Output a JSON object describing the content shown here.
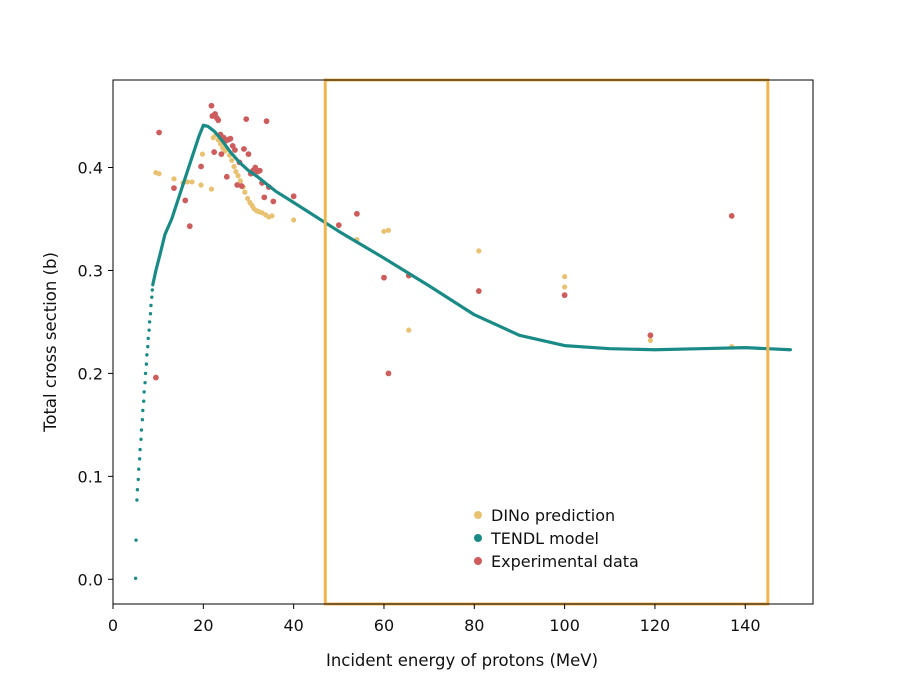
{
  "chart_data": {
    "type": "scatter",
    "title": "",
    "xlabel": "Incident energy of protons (MeV)",
    "ylabel": "Total cross section (b)",
    "xlim": [
      0,
      155
    ],
    "ylim": [
      -0.024,
      0.485
    ],
    "xticks": [
      0,
      20,
      40,
      60,
      80,
      100,
      120,
      140
    ],
    "yticks": [
      0.0,
      0.1,
      0.2,
      0.3,
      0.4
    ],
    "ytick_labels": [
      "0.0",
      "0.1",
      "0.2",
      "0.3",
      "0.4"
    ],
    "legend_position": "bottom-center",
    "colors": {
      "dino": "#e8c270",
      "tendl": "#1a8a86",
      "exp": "#cd5c5c",
      "highlight": "#f0b450",
      "axes": "#000000"
    },
    "highlight_box": {
      "x_range": [
        47,
        145
      ],
      "y_range": [
        -0.024,
        0.485
      ]
    },
    "series": [
      {
        "name": "DINo prediction",
        "kind": "scatter",
        "points": [
          [
            9.5,
            0.395
          ],
          [
            10.2,
            0.394
          ],
          [
            13.5,
            0.389
          ],
          [
            15.5,
            0.385
          ],
          [
            16.5,
            0.386
          ],
          [
            17.5,
            0.386
          ],
          [
            19.5,
            0.383
          ],
          [
            19.8,
            0.413
          ],
          [
            21.8,
            0.379
          ],
          [
            22.2,
            0.429
          ],
          [
            22.8,
            0.432
          ],
          [
            23.3,
            0.427
          ],
          [
            23.8,
            0.423
          ],
          [
            24.3,
            0.419
          ],
          [
            24.8,
            0.416
          ],
          [
            25.2,
            0.418
          ],
          [
            25.8,
            0.412
          ],
          [
            26.3,
            0.407
          ],
          [
            26.8,
            0.401
          ],
          [
            27.2,
            0.396
          ],
          [
            27.7,
            0.392
          ],
          [
            28.2,
            0.387
          ],
          [
            28.8,
            0.381
          ],
          [
            29.2,
            0.376
          ],
          [
            29.8,
            0.37
          ],
          [
            30.3,
            0.366
          ],
          [
            30.8,
            0.363
          ],
          [
            31.2,
            0.36
          ],
          [
            31.8,
            0.358
          ],
          [
            32.3,
            0.357
          ],
          [
            33.0,
            0.356
          ],
          [
            33.8,
            0.354
          ],
          [
            34.5,
            0.352
          ],
          [
            35.2,
            0.353
          ],
          [
            40.0,
            0.349
          ],
          [
            54.0,
            0.33
          ],
          [
            60.0,
            0.338
          ],
          [
            61.0,
            0.339
          ],
          [
            65.5,
            0.242
          ],
          [
            81.0,
            0.319
          ],
          [
            100.0,
            0.294
          ],
          [
            100.0,
            0.284
          ],
          [
            119.0,
            0.232
          ],
          [
            137.0,
            0.226
          ]
        ]
      },
      {
        "name": "TENDL model",
        "kind": "line",
        "points": [
          [
            8.8,
            0.286
          ],
          [
            9.5,
            0.3
          ],
          [
            10.5,
            0.317
          ],
          [
            11.5,
            0.335
          ],
          [
            13.0,
            0.35
          ],
          [
            14.5,
            0.37
          ],
          [
            16.0,
            0.39
          ],
          [
            17.5,
            0.41
          ],
          [
            19.0,
            0.43
          ],
          [
            20.0,
            0.441
          ],
          [
            21.0,
            0.44
          ],
          [
            22.5,
            0.435
          ],
          [
            24.0,
            0.427
          ],
          [
            26.0,
            0.415
          ],
          [
            28.0,
            0.405
          ],
          [
            30.0,
            0.397
          ],
          [
            32.0,
            0.391
          ],
          [
            34.0,
            0.384
          ],
          [
            36.0,
            0.377
          ],
          [
            40.0,
            0.366
          ],
          [
            50.0,
            0.338
          ],
          [
            60.0,
            0.312
          ],
          [
            70.0,
            0.285
          ],
          [
            80.0,
            0.257
          ],
          [
            90.0,
            0.237
          ],
          [
            100.0,
            0.227
          ],
          [
            110.0,
            0.224
          ],
          [
            120.0,
            0.223
          ],
          [
            130.0,
            0.224
          ],
          [
            140.0,
            0.225
          ],
          [
            150.0,
            0.223
          ]
        ],
        "sparse_points": [
          [
            5.0,
            0.001
          ],
          [
            5.1,
            0.038
          ],
          [
            5.3,
            0.077
          ],
          [
            5.4,
            0.087
          ],
          [
            5.6,
            0.097
          ],
          [
            5.7,
            0.107
          ],
          [
            5.9,
            0.117
          ],
          [
            6.0,
            0.126
          ],
          [
            6.2,
            0.136
          ],
          [
            6.3,
            0.145
          ],
          [
            6.5,
            0.155
          ],
          [
            6.6,
            0.164
          ],
          [
            6.8,
            0.173
          ],
          [
            6.9,
            0.182
          ],
          [
            7.1,
            0.191
          ],
          [
            7.2,
            0.2
          ],
          [
            7.4,
            0.209
          ],
          [
            7.5,
            0.218
          ],
          [
            7.7,
            0.226
          ],
          [
            7.8,
            0.234
          ],
          [
            8.0,
            0.242
          ],
          [
            8.1,
            0.25
          ],
          [
            8.3,
            0.258
          ],
          [
            8.4,
            0.266
          ],
          [
            8.6,
            0.274
          ],
          [
            8.7,
            0.281
          ]
        ]
      },
      {
        "name": "Experimental data",
        "kind": "scatter",
        "points": [
          [
            9.5,
            0.196
          ],
          [
            10.2,
            0.434
          ],
          [
            13.5,
            0.38
          ],
          [
            16.0,
            0.368
          ],
          [
            17.0,
            0.343
          ],
          [
            19.5,
            0.401
          ],
          [
            21.8,
            0.46
          ],
          [
            22.0,
            0.45
          ],
          [
            22.4,
            0.415
          ],
          [
            22.6,
            0.452
          ],
          [
            23.0,
            0.448
          ],
          [
            23.3,
            0.446
          ],
          [
            23.8,
            0.432
          ],
          [
            24.0,
            0.413
          ],
          [
            24.5,
            0.429
          ],
          [
            25.0,
            0.426
          ],
          [
            25.2,
            0.391
          ],
          [
            25.5,
            0.427
          ],
          [
            26.0,
            0.428
          ],
          [
            26.5,
            0.421
          ],
          [
            27.0,
            0.417
          ],
          [
            27.5,
            0.383
          ],
          [
            28.0,
            0.405
          ],
          [
            28.5,
            0.382
          ],
          [
            29.0,
            0.418
          ],
          [
            29.5,
            0.447
          ],
          [
            30.0,
            0.413
          ],
          [
            30.5,
            0.394
          ],
          [
            31.0,
            0.397
          ],
          [
            31.5,
            0.4
          ],
          [
            32.0,
            0.396
          ],
          [
            32.5,
            0.397
          ],
          [
            33.0,
            0.385
          ],
          [
            33.5,
            0.371
          ],
          [
            34.0,
            0.445
          ],
          [
            34.5,
            0.381
          ],
          [
            35.5,
            0.367
          ],
          [
            40.0,
            0.372
          ],
          [
            50.0,
            0.344
          ],
          [
            54.0,
            0.355
          ],
          [
            60.0,
            0.293
          ],
          [
            61.0,
            0.2
          ],
          [
            65.5,
            0.295
          ],
          [
            81.0,
            0.28
          ],
          [
            100.0,
            0.276
          ],
          [
            119.0,
            0.237
          ],
          [
            137.0,
            0.353
          ]
        ]
      }
    ]
  }
}
